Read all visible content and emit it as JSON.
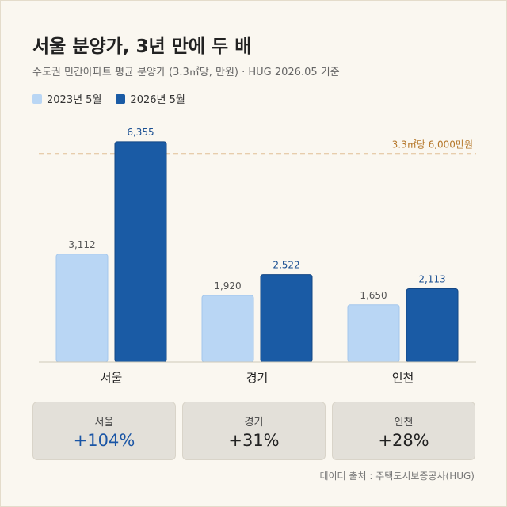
{
  "title": "서울 분양가, 3년 만에 두 배",
  "subtitle": "수도권 민간아파트 평균 분양가 (3.3㎡당, 만원) · HUG 2026.05 기준",
  "colors": {
    "series_2023": "#b9d6f4",
    "series_2026": "#1a5ba5",
    "reference": "#c8883a",
    "accent": "#1a55a5"
  },
  "chart_data": {
    "type": "bar",
    "categories": [
      "서울",
      "경기",
      "인천"
    ],
    "series": [
      {
        "name": "2023년 5월",
        "values": [
          3112,
          1920,
          1650
        ],
        "labels": [
          "3,112",
          "1,920",
          "1,650"
        ]
      },
      {
        "name": "2026년 5월",
        "values": [
          6355,
          2522,
          2113
        ],
        "labels": [
          "6,355",
          "2,522",
          "2,113"
        ]
      }
    ],
    "reference_line": {
      "value": 6000,
      "label": "3.3㎡당 6,000만원"
    },
    "ylim": [
      0,
      6900
    ],
    "grid": false,
    "legend": "top-left"
  },
  "cards": [
    {
      "label": "서울",
      "value": "+104%",
      "accent": true
    },
    {
      "label": "경기",
      "value": "+31%",
      "accent": false
    },
    {
      "label": "인천",
      "value": "+28%",
      "accent": false
    }
  ],
  "source": "데이터 출처 : 주택도시보증공사(HUG)"
}
